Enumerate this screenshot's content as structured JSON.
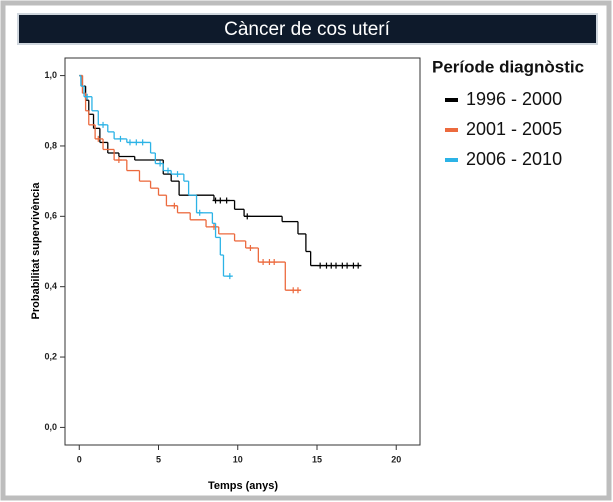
{
  "chart_data": {
    "type": "kaplan-meier",
    "title": "Càncer de cos uterí",
    "x_label": "Temps (anys)",
    "y_label": "Probabilitat supervivència",
    "legend_title": "Període diagnòstic",
    "xlim": [
      -0.9,
      21.5
    ],
    "ylim": [
      -0.05,
      1.05
    ],
    "xticks": [
      0,
      5,
      10,
      15,
      20
    ],
    "yticks": [
      {
        "value": 0,
        "label": "0,0"
      },
      {
        "value": 0.2,
        "label": "0,2"
      },
      {
        "value": 0.4,
        "label": "0,4"
      },
      {
        "value": 0.6,
        "label": "0,6"
      },
      {
        "value": 0.8,
        "label": "0,8"
      },
      {
        "value": 1,
        "label": "1,0"
      }
    ],
    "series": [
      {
        "name": "1996 - 2000",
        "color": "#000000",
        "x": [
          0,
          0.2,
          0.4,
          0.6,
          0.9,
          1.3,
          1.8,
          2.5,
          3.5,
          5.3,
          5.8,
          6.3,
          8.5,
          9.8,
          10.4,
          12.8,
          13.8,
          14.3,
          14.6,
          17.8
        ],
        "values": [
          1,
          0.97,
          0.93,
          0.89,
          0.85,
          0.81,
          0.78,
          0.77,
          0.76,
          0.72,
          0.7,
          0.66,
          0.645,
          0.62,
          0.6,
          0.585,
          0.55,
          0.5,
          0.46,
          0.46
        ],
        "censored": [
          8.6,
          8.9,
          9.3,
          10.6,
          15.2,
          15.6,
          15.9,
          16.2,
          16.6,
          16.9,
          17.3,
          17.6
        ]
      },
      {
        "name": "2001 - 2005",
        "color": "#ec6a3e",
        "x": [
          0,
          0.2,
          0.4,
          0.6,
          1,
          1.5,
          2.2,
          3,
          3.8,
          4.5,
          5,
          5.5,
          6.2,
          7,
          8,
          8.8,
          9.8,
          10.5,
          11.3,
          13,
          14
        ],
        "values": [
          1,
          0.95,
          0.9,
          0.86,
          0.82,
          0.79,
          0.76,
          0.73,
          0.7,
          0.68,
          0.66,
          0.63,
          0.61,
          0.59,
          0.57,
          0.55,
          0.53,
          0.51,
          0.47,
          0.39,
          0.39
        ],
        "censored": [
          1.2,
          2.5,
          6,
          8.5,
          10.8,
          11.6,
          12,
          12.3,
          13.5,
          13.8
        ]
      },
      {
        "name": "2006 - 2010",
        "color": "#2cb3e6",
        "x": [
          0,
          0.1,
          0.3,
          0.8,
          1.2,
          1.8,
          2.2,
          3,
          4.5,
          4.8,
          5.3,
          5.8,
          6.6,
          6.9,
          7.4,
          8.4,
          8.6,
          8.9,
          9.1,
          9.6
        ],
        "values": [
          1,
          0.97,
          0.94,
          0.9,
          0.86,
          0.84,
          0.82,
          0.81,
          0.78,
          0.75,
          0.73,
          0.72,
          0.7,
          0.66,
          0.61,
          0.58,
          0.54,
          0.49,
          0.43,
          0.43
        ],
        "censored": [
          0.5,
          1.5,
          2.6,
          3.2,
          3.6,
          4,
          5.1,
          5.6,
          6.2,
          7.6,
          9.5
        ]
      }
    ]
  }
}
